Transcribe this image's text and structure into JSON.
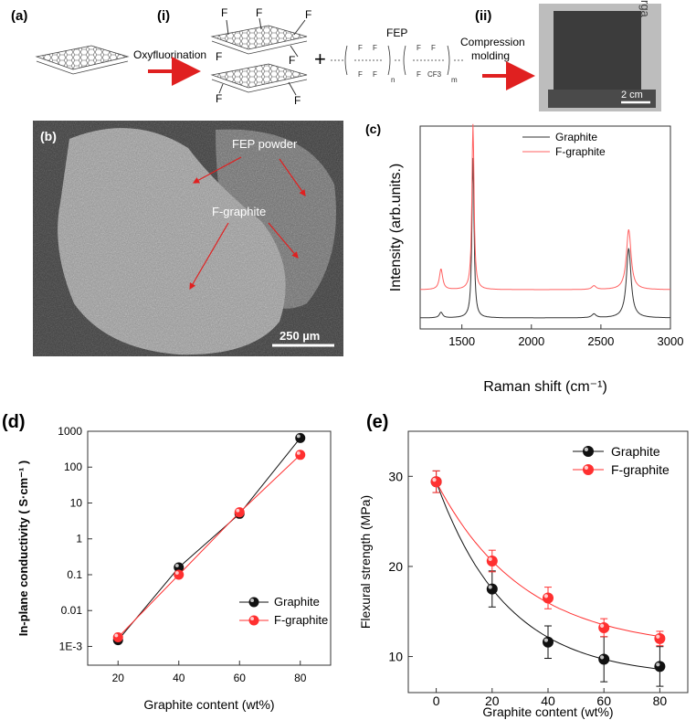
{
  "panel_a": {
    "label": "(a)",
    "step1": "(i)",
    "step1_text": "Oxyfluorination",
    "step2": "(ii)",
    "step2_text_1": "Compression",
    "step2_text_2": "molding",
    "fluorine_symbol": "F",
    "plus": "+",
    "fep_label": "FEP",
    "cf3": "CF3",
    "n_sub": "n",
    "m_sub": "m",
    "photo_scale": "2 cm",
    "photo_bg_text": "rga",
    "colors": {
      "arrow": "#e02020"
    }
  },
  "panel_b": {
    "label": "(b)",
    "annotation_fep": "FEP powder",
    "annotation_fgraphite": "F-graphite",
    "scale_bar": "250 µm"
  },
  "chart_data": [
    {
      "panel": "(c)",
      "type": "line",
      "xlabel": "Raman shift (cm⁻¹)",
      "ylabel": "Intensity (arb.units.)",
      "xlim": [
        1200,
        3000
      ],
      "xticks": [
        "1500",
        "2000",
        "2500",
        "3000"
      ],
      "xtick_values": [
        1500,
        2000,
        2500,
        3000
      ],
      "legend": [
        "Graphite",
        "F-graphite"
      ],
      "legend_position": "top-right",
      "peaks_cm": {
        "D": 1350,
        "G": 1580,
        "2D_shoulder": 2450,
        "2D": 2700
      },
      "series": [
        {
          "name": "Graphite",
          "color": "#333333",
          "baseline": 0.0,
          "peak_intensity": {
            "D": 0.03,
            "G": 0.85,
            "2D_shoulder": 0.02,
            "2D": 0.37
          }
        },
        {
          "name": "F-graphite",
          "color": "#ff6060",
          "baseline": 0.15,
          "peak_intensity": {
            "D": 0.11,
            "G": 0.88,
            "2D_shoulder": 0.02,
            "2D": 0.32
          }
        }
      ]
    },
    {
      "panel": "(d)",
      "type": "line",
      "scale": "log",
      "xlabel": "Graphite content (wt%)",
      "ylabel": "In-plane conductivity ( S·cm⁻¹ )",
      "xlim": [
        10,
        90
      ],
      "ylim": [
        0.0003,
        1000
      ],
      "xticks": [
        "20",
        "40",
        "60",
        "80"
      ],
      "xtick_values": [
        20,
        40,
        60,
        80
      ],
      "yticks": [
        "1E-3",
        "0.01",
        "0.1",
        "1",
        "10",
        "100",
        "1000"
      ],
      "ytick_values": [
        0.001,
        0.01,
        0.1,
        1,
        10,
        100,
        1000
      ],
      "x": [
        20,
        40,
        60,
        80
      ],
      "legend": [
        "Graphite",
        "F-graphite"
      ],
      "legend_position": "bottom-right",
      "series": [
        {
          "name": "Graphite",
          "color": "#111111",
          "values": [
            0.0015,
            0.16,
            5,
            650
          ]
        },
        {
          "name": "F-graphite",
          "color": "#ff3030",
          "values": [
            0.0018,
            0.1,
            5.5,
            220
          ]
        }
      ]
    },
    {
      "panel": "(e)",
      "type": "scatter",
      "xlabel": "Graphite content (wt%)",
      "ylabel": "Flexural strength (MPa)",
      "xlim": [
        -10,
        90
      ],
      "ylim": [
        6,
        35
      ],
      "xticks": [
        "0",
        "20",
        "40",
        "60",
        "80"
      ],
      "xtick_values": [
        0,
        20,
        40,
        60,
        80
      ],
      "yticks": [
        "10",
        "20",
        "30"
      ],
      "ytick_values": [
        10,
        20,
        30
      ],
      "x": [
        0,
        20,
        40,
        60,
        80
      ],
      "legend": [
        "Graphite",
        "F-graphite"
      ],
      "legend_position": "top-right",
      "series": [
        {
          "name": "Graphite",
          "color": "#111111",
          "values": [
            29.4,
            17.5,
            11.6,
            9.7,
            8.9
          ],
          "errors": [
            1.2,
            2.0,
            1.8,
            2.5,
            2.2
          ]
        },
        {
          "name": "F-graphite",
          "color": "#ff3030",
          "values": [
            29.4,
            20.6,
            16.5,
            13.2,
            12.0
          ],
          "errors": [
            1.2,
            1.2,
            1.2,
            1.0,
            0.8
          ]
        }
      ]
    }
  ]
}
